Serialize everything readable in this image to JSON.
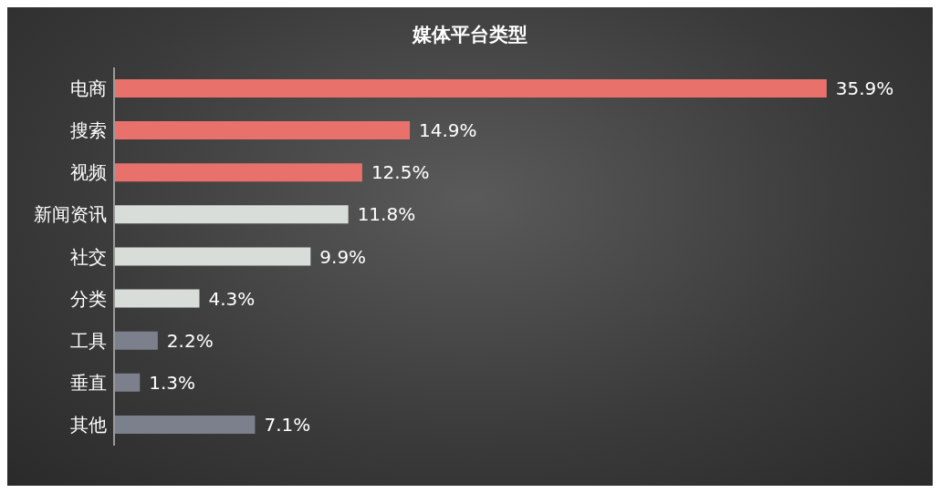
{
  "chart_data": {
    "type": "bar",
    "orientation": "horizontal",
    "title": "媒体平台类型",
    "categories": [
      "电商",
      "搜索",
      "视频",
      "新闻资讯",
      "社交",
      "分类",
      "工具",
      "垂直",
      "其他"
    ],
    "values": [
      35.9,
      14.9,
      12.5,
      11.8,
      9.9,
      4.3,
      2.2,
      1.3,
      7.1
    ],
    "colors": [
      "#e8726b",
      "#e8726b",
      "#e8726b",
      "#d9ddd9",
      "#d9ddd9",
      "#d9ddd9",
      "#7c808c",
      "#7c808c",
      "#7c808c"
    ],
    "value_labels": [
      "35.9%",
      "14.9%",
      "12.5%",
      "11.8%",
      "9.9%",
      "4.3%",
      "2.2%",
      "1.3%",
      "7.1%"
    ],
    "tick_labels": "y"
  }
}
